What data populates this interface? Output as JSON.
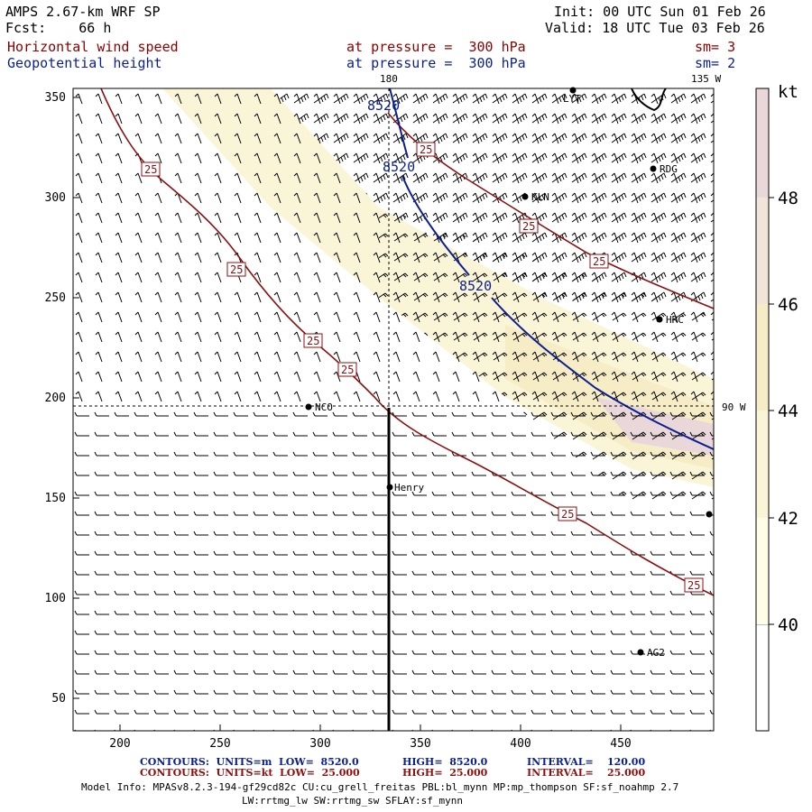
{
  "header": {
    "model": "AMPS 2.67-km WRF SP",
    "forecast": "Fcst:    66 h",
    "init": "Init: 00 UTC Sun 01 Feb 26",
    "valid": "Valid: 18 UTC Tue 03 Feb 26",
    "field1_name": "Horizontal wind speed",
    "field1_level": "at pressure =  300 hPa",
    "field1_sm": "sm= 3",
    "field2_name": "Geopotential height",
    "field2_level": "at pressure =  300 hPa",
    "field2_sm": "sm= 2"
  },
  "map": {
    "lon_labels": [
      "180",
      "135 W",
      "90 W"
    ],
    "x_ticks": [
      "200",
      "250",
      "300",
      "350",
      "400",
      "450"
    ],
    "y_ticks": [
      "50",
      "100",
      "150",
      "200",
      "250",
      "300",
      "350"
    ],
    "stations": [
      {
        "name": "LYT"
      },
      {
        "name": "RDG"
      },
      {
        "name": "KLN"
      },
      {
        "name": "HRC"
      },
      {
        "name": "NCO"
      },
      {
        "name": "Henry"
      },
      {
        "name": "AG2"
      }
    ],
    "wind_contour_label": "25",
    "height_contour_label": "8520"
  },
  "colorbar": {
    "unit": "kt",
    "labels": [
      "48",
      "46",
      "44",
      "42",
      "40"
    ],
    "colors": {
      "c48": "#ead7da",
      "c46": "#f1e5d8",
      "c44": "#f6edc6",
      "c42": "#fbf5d8",
      "c40": "#fffce8"
    }
  },
  "footer": {
    "row1": {
      "label": "CONTOURS:  UNITS=m  LOW=  8520.0",
      "high": "HIGH=  8520.0",
      "interval": "INTERVAL=    120.00"
    },
    "row2": {
      "label": "CONTOURS:  UNITS=kt  LOW=  25.000",
      "high": "HIGH=  25.000",
      "interval": "INTERVAL=    25.000"
    },
    "model_info": "Model Info: MPASv8.2.3-194-gf29cd82c CU:cu_grell_freitas PBL:bl_mynn MP:mp_thompson SF:sf_noahmp 2.7",
    "model_info2": "LW:rrtmg_lw SW:rrtmg_sw SFLAY:sf_mynn"
  }
}
